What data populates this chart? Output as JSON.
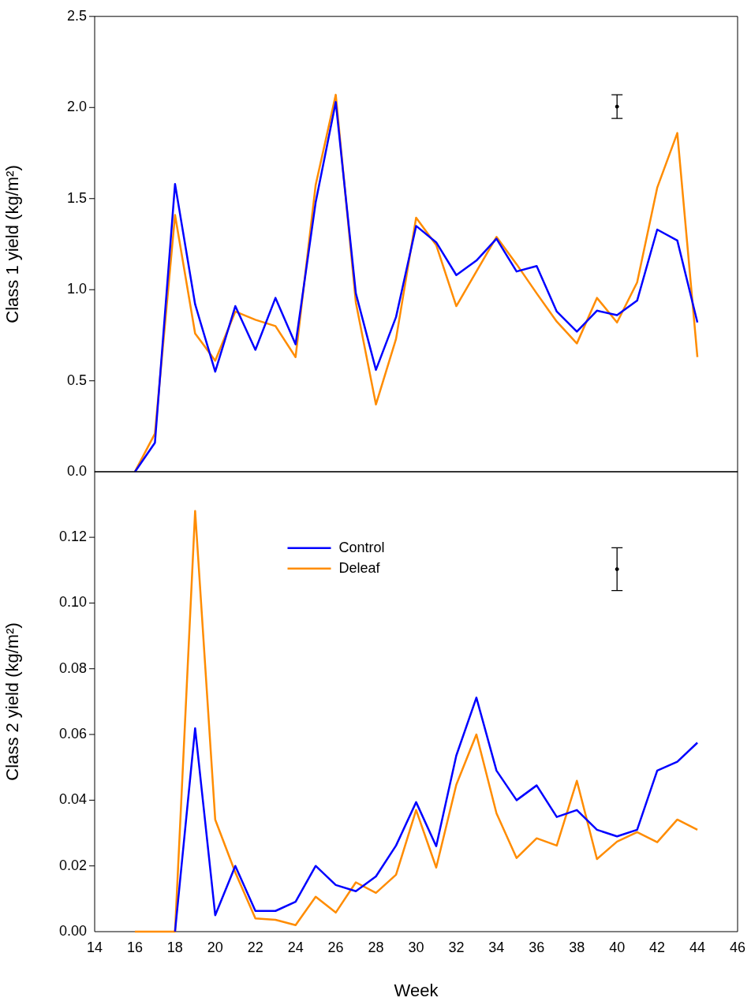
{
  "chart_data": [
    {
      "type": "line",
      "ylabel": "Class 1 yield (kg/m²)",
      "x": [
        16,
        17,
        18,
        19,
        20,
        21,
        22,
        23,
        24,
        25,
        26,
        27,
        28,
        29,
        30,
        31,
        32,
        33,
        34,
        35,
        36,
        37,
        38,
        39,
        40,
        41,
        42,
        43,
        44
      ],
      "xlim": [
        14,
        46
      ],
      "xticks": [
        14,
        16,
        18,
        20,
        22,
        24,
        26,
        28,
        30,
        32,
        34,
        36,
        38,
        40,
        42,
        44,
        46
      ],
      "ylim": [
        0,
        2.5
      ],
      "yticks": [
        {
          "value": 0,
          "label": "0.0"
        },
        0.5,
        {
          "value": 1,
          "label": "1.0"
        },
        1.5,
        {
          "value": 2,
          "label": "2.0"
        },
        2.5
      ],
      "tick_labels": "y",
      "grid": false,
      "marker": "none",
      "line_style": "solid",
      "series": [
        {
          "color": "#0000ff",
          "values": [
            0,
            0.16,
            1.58,
            0.92,
            0.55,
            0.91,
            0.67,
            0.955,
            0.7,
            1.48,
            2.03,
            0.98,
            0.56,
            0.85,
            1.35,
            1.26,
            1.08,
            1.16,
            1.28,
            1.1,
            1.13,
            0.88,
            0.77,
            0.885,
            0.86,
            0.94,
            1.33,
            1.27,
            0.82
          ]
        },
        {
          "color": "#ff8c00",
          "values": [
            0,
            0.21,
            1.41,
            0.76,
            0.61,
            0.88,
            0.835,
            0.8,
            0.63,
            1.575,
            2.07,
            0.93,
            0.37,
            0.73,
            1.395,
            1.245,
            0.91,
            1.1,
            1.29,
            1.14,
            0.98,
            0.825,
            0.705,
            0.955,
            0.82,
            1.04,
            1.56,
            1.86,
            0.63
          ]
        },
        {
          "type": "scatter",
          "marker": "circle",
          "color": "#000000",
          "x": [
            40
          ],
          "values": [
            2.005
          ],
          "errors": [
            0.065
          ]
        }
      ]
    },
    {
      "type": "line",
      "xlabel": "Week",
      "ylabel": "Class 2 yield (kg/m²)",
      "x": [
        16,
        17,
        18,
        19,
        20,
        21,
        22,
        23,
        24,
        25,
        26,
        27,
        28,
        29,
        30,
        31,
        32,
        33,
        34,
        35,
        36,
        37,
        38,
        39,
        40,
        41,
        42,
        43,
        44
      ],
      "xlim": [
        14,
        46
      ],
      "xticks": [
        14,
        16,
        18,
        20,
        22,
        24,
        26,
        28,
        30,
        32,
        34,
        36,
        38,
        40,
        42,
        44,
        46
      ],
      "ylim": [
        0,
        0.14
      ],
      "yticks": [
        {
          "value": 0,
          "label": "0.00"
        },
        {
          "value": 0.02,
          "label": "0.02"
        },
        {
          "value": 0.04,
          "label": "0.04"
        },
        {
          "value": 0.06,
          "label": "0.06"
        },
        {
          "value": 0.08,
          "label": "0.08"
        },
        {
          "value": 0.1,
          "label": "0.10"
        },
        {
          "value": 0.12,
          "label": "0.12"
        }
      ],
      "grid": false,
      "marker": "none",
      "line_style": "solid",
      "legend": "top",
      "series": [
        {
          "name": "Control",
          "color": "#0000ff",
          "values": [
            null,
            null,
            0,
            0.0619,
            0.005,
            0.02,
            0.0063,
            0.0063,
            0.0091,
            0.02,
            0.0142,
            0.0123,
            0.0168,
            0.0262,
            0.0394,
            0.026,
            0.0536,
            0.0712,
            0.049,
            0.04,
            0.0445,
            0.0349,
            0.037,
            0.031,
            0.029,
            0.031,
            0.049,
            0.0517,
            0.0575
          ]
        },
        {
          "name": "Deleaf",
          "color": "#ff8c00",
          "values": [
            0,
            0,
            0,
            0.128,
            0.0341,
            0.018,
            0.004,
            0.0036,
            0.002,
            0.0106,
            0.0058,
            0.015,
            0.0118,
            0.0173,
            0.037,
            0.0195,
            0.0447,
            0.06,
            0.036,
            0.0224,
            0.0284,
            0.0262,
            0.0459,
            0.0221,
            0.0274,
            0.0303,
            0.0272,
            0.0341,
            0.031
          ]
        },
        {
          "type": "scatter",
          "marker": "circle",
          "color": "#000000",
          "x": [
            40
          ],
          "values": [
            0.1103
          ],
          "errors": [
            0.0065
          ]
        }
      ]
    }
  ]
}
